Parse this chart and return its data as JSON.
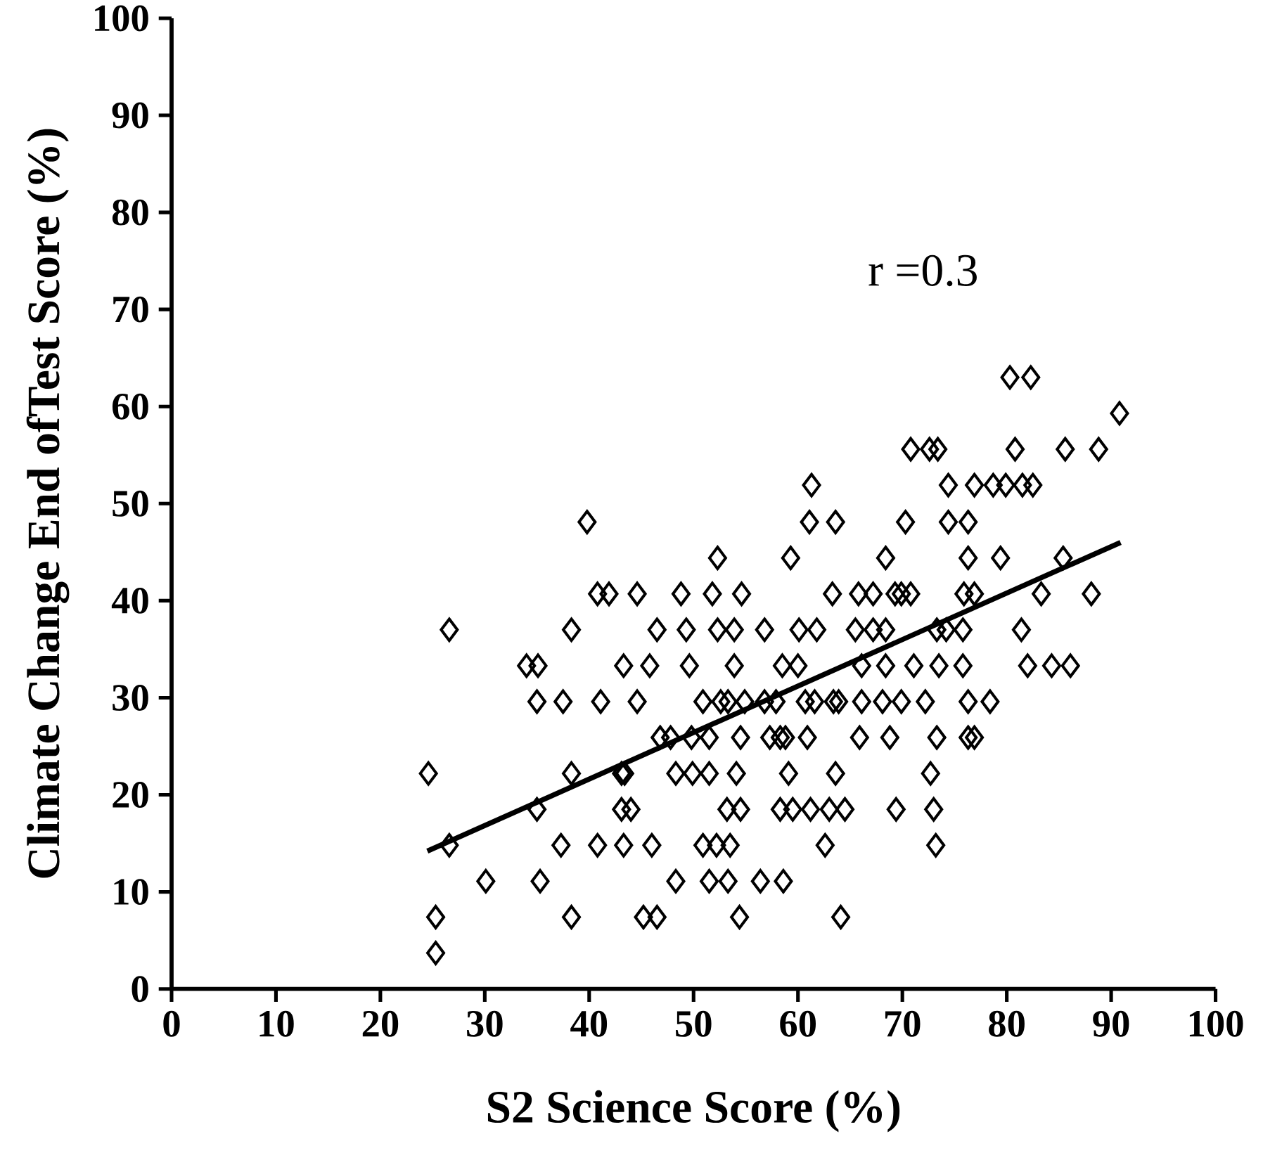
{
  "chart_data": {
    "type": "scatter",
    "xlabel": "S2 Science Score (%)",
    "ylabel": "Climate Change End ofTest Score (%)",
    "annotations": [
      "r =0.3"
    ],
    "xlim": [
      0,
      100
    ],
    "xticks": [
      0,
      10,
      20,
      30,
      40,
      50,
      60,
      70,
      80,
      90,
      100
    ],
    "ylim": [
      0,
      100
    ],
    "yticks": [
      0,
      10,
      20,
      30,
      40,
      50,
      60,
      70,
      80,
      90,
      100
    ],
    "series": [
      {
        "marker": "diamond",
        "color": "#000000",
        "x": [
          80.3,
          82.3,
          90.8,
          70.8,
          72.6,
          73.4,
          80.8,
          85.6,
          88.8,
          61.3,
          74.4,
          76.9,
          78.7,
          79.9,
          81.5,
          82.5,
          39.8,
          61.1,
          63.6,
          70.3,
          74.4,
          76.3,
          52.3,
          59.3,
          68.4,
          76.3,
          79.4,
          85.4,
          40.8,
          41.9,
          44.6,
          48.8,
          51.8,
          54.6,
          63.3,
          65.8,
          67.2,
          69.3,
          69.9,
          70.8,
          75.9,
          76.9,
          83.3,
          88.1,
          26.6,
          38.3,
          46.5,
          49.3,
          52.3,
          53.9,
          56.8,
          60.1,
          61.8,
          65.5,
          67.2,
          68.4,
          73.3,
          74.2,
          75.8,
          81.4,
          34.0,
          35.1,
          43.3,
          45.8,
          49.6,
          53.9,
          58.5,
          60.0,
          66.1,
          68.4,
          71.1,
          73.5,
          75.8,
          82.0,
          84.3,
          86.1,
          35.0,
          37.5,
          41.1,
          44.6,
          50.9,
          52.6,
          53.3,
          54.9,
          56.8,
          57.9,
          60.7,
          61.6,
          63.4,
          63.9,
          66.1,
          68.1,
          69.9,
          72.2,
          76.3,
          78.4,
          46.8,
          47.8,
          49.8,
          51.5,
          54.5,
          57.3,
          58.3,
          58.8,
          60.9,
          65.9,
          68.8,
          73.3,
          76.3,
          76.9,
          24.6,
          38.3,
          43.1,
          43.4,
          48.3,
          49.9,
          51.5,
          54.1,
          59.1,
          63.6,
          72.7,
          35.0,
          43.1,
          44.0,
          53.2,
          54.5,
          58.3,
          59.5,
          61.2,
          63.0,
          64.5,
          69.4,
          73.0,
          26.6,
          37.3,
          40.8,
          43.3,
          46.0,
          50.9,
          52.2,
          53.5,
          62.6,
          73.2,
          30.1,
          35.3,
          48.3,
          51.5,
          53.3,
          56.4,
          58.6,
          25.3,
          38.3,
          45.2,
          46.5,
          54.4,
          64.1,
          25.3
        ],
        "values": [
          63.0,
          63.0,
          59.3,
          55.6,
          55.6,
          55.6,
          55.6,
          55.6,
          55.6,
          51.9,
          51.9,
          51.9,
          51.9,
          51.9,
          51.9,
          51.9,
          48.1,
          48.1,
          48.1,
          48.1,
          48.1,
          48.1,
          44.4,
          44.4,
          44.4,
          44.4,
          44.4,
          44.4,
          40.7,
          40.7,
          40.7,
          40.7,
          40.7,
          40.7,
          40.7,
          40.7,
          40.7,
          40.7,
          40.7,
          40.7,
          40.7,
          40.7,
          40.7,
          40.7,
          37.0,
          37.0,
          37.0,
          37.0,
          37.0,
          37.0,
          37.0,
          37.0,
          37.0,
          37.0,
          37.0,
          37.0,
          37.0,
          37.0,
          37.0,
          37.0,
          33.3,
          33.3,
          33.3,
          33.3,
          33.3,
          33.3,
          33.3,
          33.3,
          33.3,
          33.3,
          33.3,
          33.3,
          33.3,
          33.3,
          33.3,
          33.3,
          29.6,
          29.6,
          29.6,
          29.6,
          29.6,
          29.6,
          29.6,
          29.6,
          29.6,
          29.6,
          29.6,
          29.6,
          29.6,
          29.6,
          29.6,
          29.6,
          29.6,
          29.6,
          29.6,
          29.6,
          25.9,
          25.9,
          25.9,
          25.9,
          25.9,
          25.9,
          25.9,
          25.9,
          25.9,
          25.9,
          25.9,
          25.9,
          25.9,
          25.9,
          22.2,
          22.2,
          22.2,
          22.2,
          22.2,
          22.2,
          22.2,
          22.2,
          22.2,
          22.2,
          22.2,
          18.5,
          18.5,
          18.5,
          18.5,
          18.5,
          18.5,
          18.5,
          18.5,
          18.5,
          18.5,
          18.5,
          18.5,
          14.8,
          14.8,
          14.8,
          14.8,
          14.8,
          14.8,
          14.8,
          14.8,
          14.8,
          14.8,
          11.1,
          11.1,
          11.1,
          11.1,
          11.1,
          11.1,
          11.1,
          7.4,
          7.4,
          7.4,
          7.4,
          7.4,
          7.4,
          3.7
        ]
      },
      {
        "type": "line",
        "marker": "none",
        "line_style": "solid",
        "color": "#000000",
        "x": [
          24.5,
          90.9
        ],
        "values": [
          14.2,
          46.0
        ]
      }
    ]
  }
}
